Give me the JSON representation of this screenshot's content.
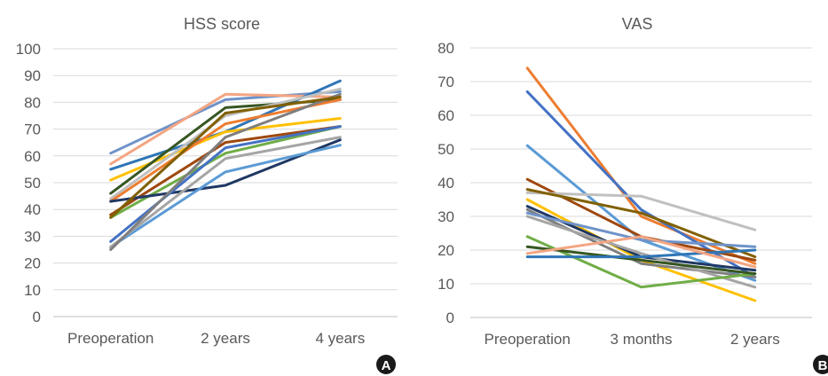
{
  "chart_data": [
    {
      "panel_label": "A",
      "type": "line",
      "title": "HSS score",
      "xlabel": "",
      "ylabel": "",
      "categories": [
        "Preoperation",
        "2 years",
        "4 years"
      ],
      "ylim": [
        0,
        100
      ],
      "yticks": [
        0,
        10,
        20,
        30,
        40,
        50,
        60,
        70,
        80,
        90,
        100
      ],
      "grid": true,
      "legend": "none",
      "series": [
        {
          "color": "#6f93c9",
          "values": [
            61,
            81,
            84
          ]
        },
        {
          "color": "#f4a582",
          "values": [
            57,
            83,
            82
          ]
        },
        {
          "color": "#2e75b6",
          "values": [
            55,
            69,
            88
          ]
        },
        {
          "color": "#ffc000",
          "values": [
            51,
            69,
            74
          ]
        },
        {
          "color": "#375623",
          "values": [
            46,
            78,
            81
          ]
        },
        {
          "color": "#c0c0c0",
          "values": [
            44,
            75,
            85
          ]
        },
        {
          "color": "#ed7d31",
          "values": [
            43,
            72,
            81
          ]
        },
        {
          "color": "#9e480e",
          "values": [
            38,
            65,
            71
          ]
        },
        {
          "color": "#70ad47",
          "values": [
            37,
            61,
            71
          ]
        },
        {
          "color": "#1f3864",
          "values": [
            43,
            49,
            66
          ]
        },
        {
          "color": "#4472c4",
          "values": [
            28,
            63,
            71
          ]
        },
        {
          "color": "#5b9bd5",
          "values": [
            26,
            54,
            64
          ]
        },
        {
          "color": "#a5a5a5",
          "values": [
            26,
            59,
            67
          ]
        },
        {
          "color": "#7f7f7f",
          "values": [
            25,
            67,
            83
          ]
        },
        {
          "color": "#806000",
          "values": [
            37,
            76,
            82
          ]
        }
      ]
    },
    {
      "panel_label": "B",
      "type": "line",
      "title": "VAS",
      "xlabel": "",
      "ylabel": "",
      "categories": [
        "Preoperation",
        "3 months",
        "2 years"
      ],
      "ylim": [
        0,
        80
      ],
      "yticks": [
        0,
        10,
        20,
        30,
        40,
        50,
        60,
        70,
        80
      ],
      "grid": true,
      "legend": "none",
      "series": [
        {
          "color": "#ed7d31",
          "values": [
            74,
            30,
            16
          ]
        },
        {
          "color": "#4472c4",
          "values": [
            67,
            32,
            12
          ]
        },
        {
          "color": "#5b9bd5",
          "values": [
            51,
            23,
            11
          ]
        },
        {
          "color": "#9e480e",
          "values": [
            41,
            24,
            17
          ]
        },
        {
          "color": "#c0c0c0",
          "values": [
            37,
            36,
            26
          ]
        },
        {
          "color": "#806000",
          "values": [
            38,
            31,
            18
          ]
        },
        {
          "color": "#ffc000",
          "values": [
            35,
            17,
            5
          ]
        },
        {
          "color": "#1f3864",
          "values": [
            33,
            18,
            14
          ]
        },
        {
          "color": "#7f7f7f",
          "values": [
            32,
            16,
            12
          ]
        },
        {
          "color": "#6f93c9",
          "values": [
            31,
            23,
            21
          ]
        },
        {
          "color": "#a5a5a5",
          "values": [
            30,
            19,
            9
          ]
        },
        {
          "color": "#70ad47",
          "values": [
            24,
            9,
            13
          ]
        },
        {
          "color": "#375623",
          "values": [
            21,
            17,
            13
          ]
        },
        {
          "color": "#2e75b6",
          "values": [
            18,
            18,
            20
          ]
        },
        {
          "color": "#f4a582",
          "values": [
            19,
            24,
            15
          ]
        }
      ]
    }
  ]
}
